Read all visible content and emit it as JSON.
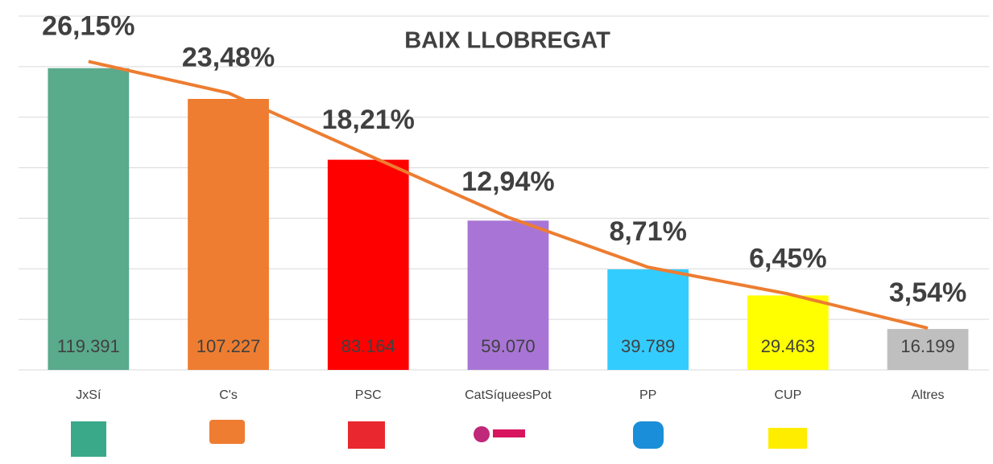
{
  "chart_data": {
    "type": "bar",
    "title": "BAIX LLOBREGAT",
    "categories": [
      "JxSí",
      "C's",
      "PSC",
      "CatSíqueesPot",
      "PP",
      "CUP",
      "Altres"
    ],
    "ylim": [
      0,
      140000
    ],
    "yticks": [
      0,
      20000,
      40000,
      60000,
      80000,
      100000,
      120000,
      140000
    ],
    "y2lim": [
      0,
      30
    ],
    "grid": true,
    "series": [
      {
        "type": "bar",
        "colors": [
          "#5aaa8c",
          "#ee7d31",
          "#ff0000",
          "#a875d6",
          "#33ccff",
          "#ffff00",
          "#bfbfbf"
        ],
        "values": [
          119391,
          107227,
          83164,
          59070,
          39789,
          29463,
          16199
        ],
        "value_labels": [
          "119.391",
          "107.227",
          "83.164",
          "59.070",
          "39.789",
          "29.463",
          "16.199"
        ]
      },
      {
        "type": "line",
        "axis": "y2",
        "color": "#ed7d31",
        "values": [
          26.15,
          23.48,
          18.21,
          12.94,
          8.71,
          6.45,
          3.54
        ],
        "value_labels": [
          "26,15%",
          "23,48%",
          "18,21%",
          "12,94%",
          "8,71%",
          "6,45%",
          "3,54%"
        ]
      }
    ]
  }
}
